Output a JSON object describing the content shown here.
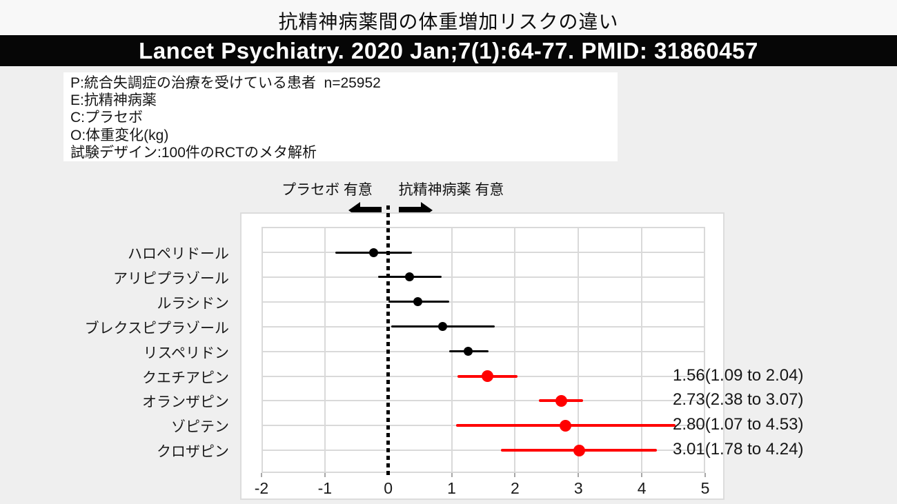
{
  "page": {
    "title": "抗精神病薬間の体重増加リスクの違い",
    "banner": "Lancet Psychiatry. 2020 Jan;7(1):64-77. PMID: 31860457"
  },
  "peco": {
    "lines": [
      "P:統合失調症の治療を受けている患者  n=25952",
      "E:抗精神病薬",
      "C:プラセボ",
      "O:体重変化(kg)",
      "試験デザイン:100件のRCTのメタ解析"
    ]
  },
  "annotations": {
    "left_label": "プラセボ 有意",
    "right_label": "抗精神病薬 有意",
    "left_arrow_icon": "left-arrow",
    "right_arrow_icon": "right-arrow"
  },
  "chart_data": {
    "type": "scatter",
    "subtype": "forest-plot",
    "title": "抗精神病薬間の体重増加リスクの違い",
    "xlabel": "",
    "ylabel": "",
    "xlim": [
      -2,
      5
    ],
    "x_ticks": [
      "-2",
      "-1",
      "0",
      "1",
      "2",
      "3",
      "4",
      "5"
    ],
    "x_tick_values": [
      -2,
      -1,
      0,
      1,
      2,
      3,
      4,
      5
    ],
    "zero_line_x": 0,
    "grid": true,
    "colors": {
      "significant": "#ff0000",
      "nonsignificant": "#000000",
      "gridline": "#d9d9d9"
    },
    "rows": [
      {
        "label": "ハロペリドール",
        "mean": -0.23,
        "ci_low": -0.83,
        "ci_high": 0.37,
        "color": "#000000",
        "value_label": ""
      },
      {
        "label": "アリピプラゾール",
        "mean": 0.33,
        "ci_low": -0.16,
        "ci_high": 0.84,
        "color": "#000000",
        "value_label": ""
      },
      {
        "label": "ルラシドン",
        "mean": 0.47,
        "ci_low": 0.0,
        "ci_high": 0.96,
        "color": "#000000",
        "value_label": ""
      },
      {
        "label": "ブレクスピプラゾール",
        "mean": 0.86,
        "ci_low": 0.05,
        "ci_high": 1.68,
        "color": "#000000",
        "value_label": ""
      },
      {
        "label": "リスペリドン",
        "mean": 1.26,
        "ci_low": 0.96,
        "ci_high": 1.58,
        "color": "#000000",
        "value_label": ""
      },
      {
        "label": "クエチアピン",
        "mean": 1.56,
        "ci_low": 1.09,
        "ci_high": 2.04,
        "color": "#ff0000",
        "value_label": "1.56(1.09 to 2.04)"
      },
      {
        "label": "オランザピン",
        "mean": 2.73,
        "ci_low": 2.38,
        "ci_high": 3.07,
        "color": "#ff0000",
        "value_label": "2.73(2.38 to 3.07)"
      },
      {
        "label": "ゾピテン",
        "mean": 2.8,
        "ci_low": 1.07,
        "ci_high": 4.53,
        "color": "#ff0000",
        "value_label": "2.80(1.07 to 4.53)"
      },
      {
        "label": "クロザピン",
        "mean": 3.01,
        "ci_low": 1.78,
        "ci_high": 4.24,
        "color": "#ff0000",
        "value_label": "3.01(1.78 to 4.24)"
      }
    ]
  }
}
